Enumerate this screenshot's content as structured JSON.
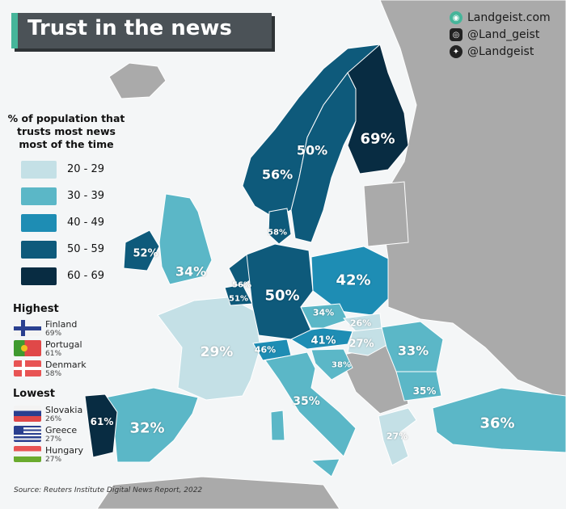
{
  "title": "Trust in the news",
  "social": {
    "website": "Landgeist.com",
    "instagram": "@Land_geist",
    "twitter": "@Landgeist"
  },
  "legend": {
    "title_lines": [
      "% of population that",
      "trusts most news",
      "most of the time"
    ],
    "bins": [
      {
        "label": "20 - 29",
        "color": "#c4e0e6"
      },
      {
        "label": "30 - 39",
        "color": "#5bb7c7"
      },
      {
        "label": "40 - 49",
        "color": "#1e8db4"
      },
      {
        "label": "50 - 59",
        "color": "#0e5a7b"
      },
      {
        "label": "60 - 69",
        "color": "#082c42"
      }
    ],
    "no_data_color": "#aaaaaa"
  },
  "highest": {
    "heading": "Highest",
    "items": [
      {
        "country": "Finland",
        "value": "69%"
      },
      {
        "country": "Portugal",
        "value": "61%"
      },
      {
        "country": "Denmark",
        "value": "58%"
      }
    ]
  },
  "lowest": {
    "heading": "Lowest",
    "items": [
      {
        "country": "Slovakia",
        "value": "26%"
      },
      {
        "country": "Greece",
        "value": "27%"
      },
      {
        "country": "Hungary",
        "value": "27%"
      }
    ]
  },
  "map_values": {
    "finland": "69%",
    "sweden": "50%",
    "norway": "56%",
    "denmark": "58%",
    "ireland": "52%",
    "uk": "34%",
    "netherlands": "56%",
    "belgium": "51%",
    "germany": "50%",
    "poland": "42%",
    "czechia": "34%",
    "slovakia": "26%",
    "hungary": "27%",
    "austria": "41%",
    "switzerland": "46%",
    "france": "29%",
    "croatia": "38%",
    "romania": "33%",
    "bulgaria": "35%",
    "italy": "35%",
    "greece": "27%",
    "turkey": "36%",
    "spain": "32%",
    "portugal": "61%"
  },
  "source": "Source: Reuters Institute Digital News Report, 2022"
}
